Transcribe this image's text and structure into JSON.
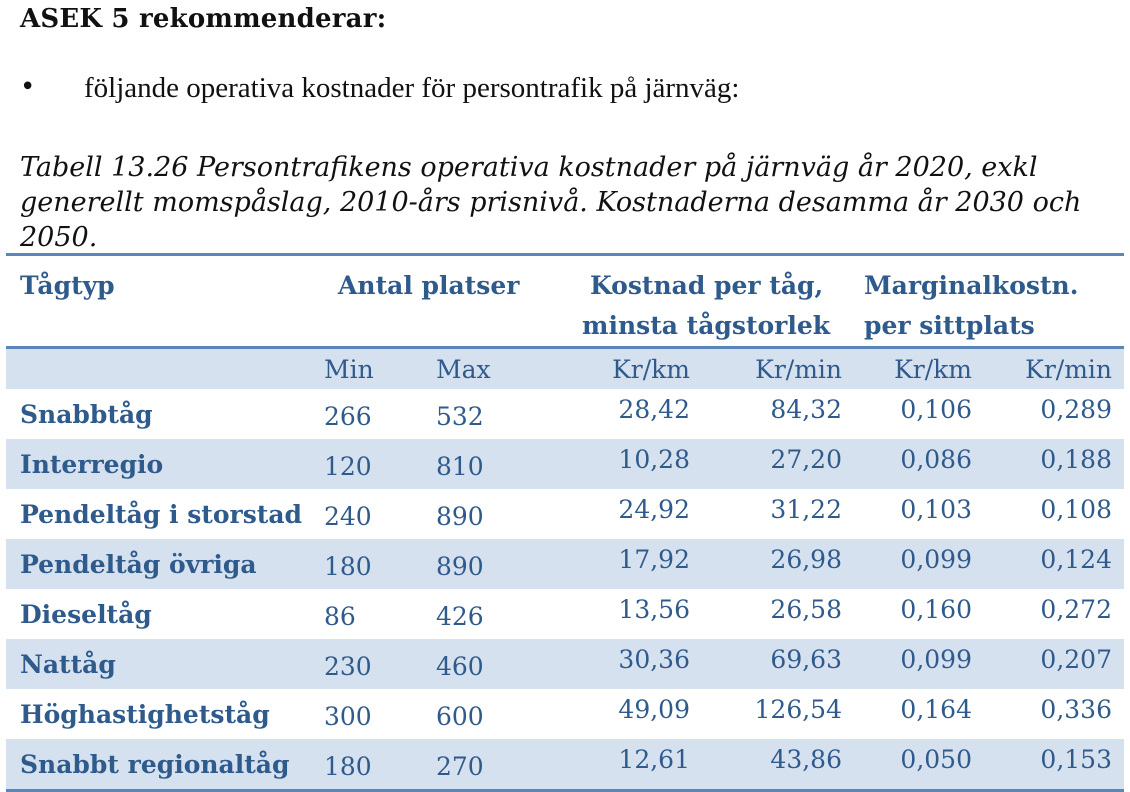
{
  "heading": "ASEK 5 rekommenderar:",
  "bullet": {
    "symbol": "•",
    "text": "följande operativa kostnader för persontrafik på järnväg:"
  },
  "caption": "Tabell 13.26 Persontrafikens operativa kostnader på järnväg år 2020, exkl generellt momspåslag, 2010-års prisnivå. Kostnaderna desamma år 2030 och 2050.",
  "table": {
    "headers": {
      "tagtyp": "Tågtyp",
      "antal_platser": "Antal platser",
      "kostnad_line1": "Kostnad per tåg,",
      "kostnad_line2": "minsta tågstorlek",
      "marginal_line1": "Marginalkostn.",
      "marginal_line2": "per sittplats"
    },
    "subheaders": [
      "Min",
      "Max",
      "Kr/km",
      "Kr/min",
      "Kr/km",
      "Kr/min"
    ],
    "rows": [
      {
        "name": "Snabbtåg",
        "min": "266",
        "max": "532",
        "kost_km": "28,42",
        "kost_min": "84,32",
        "marg_km": "0,106",
        "marg_min": "0,289"
      },
      {
        "name": "Interregio",
        "min": "120",
        "max": "810",
        "kost_km": "10,28",
        "kost_min": "27,20",
        "marg_km": "0,086",
        "marg_min": "0,188"
      },
      {
        "name": "Pendeltåg i storstad",
        "min": "240",
        "max": "890",
        "kost_km": "24,92",
        "kost_min": "31,22",
        "marg_km": "0,103",
        "marg_min": "0,108"
      },
      {
        "name": "Pendeltåg övriga",
        "min": "180",
        "max": "890",
        "kost_km": "17,92",
        "kost_min": "26,98",
        "marg_km": "0,099",
        "marg_min": "0,124"
      },
      {
        "name": "Dieseltåg",
        "min": "86",
        "max": "426",
        "kost_km": "13,56",
        "kost_min": "26,58",
        "marg_km": "0,160",
        "marg_min": "0,272"
      },
      {
        "name": "Nattåg",
        "min": "230",
        "max": "460",
        "kost_km": "30,36",
        "kost_min": "69,63",
        "marg_km": "0,099",
        "marg_min": "0,207"
      },
      {
        "name": "Höghastighetståg",
        "min": "300",
        "max": "600",
        "kost_km": "49,09",
        "kost_min": "126,54",
        "marg_km": "0,164",
        "marg_min": "0,336"
      },
      {
        "name": "Snabbt regionaltåg",
        "min": "180",
        "max": "270",
        "kost_km": "12,61",
        "kost_min": "43,86",
        "marg_km": "0,050",
        "marg_min": "0,153"
      }
    ]
  },
  "colors": {
    "table_text": "#2f5a8c",
    "rule": "#5b86b8",
    "band": "#d6e1f0"
  }
}
